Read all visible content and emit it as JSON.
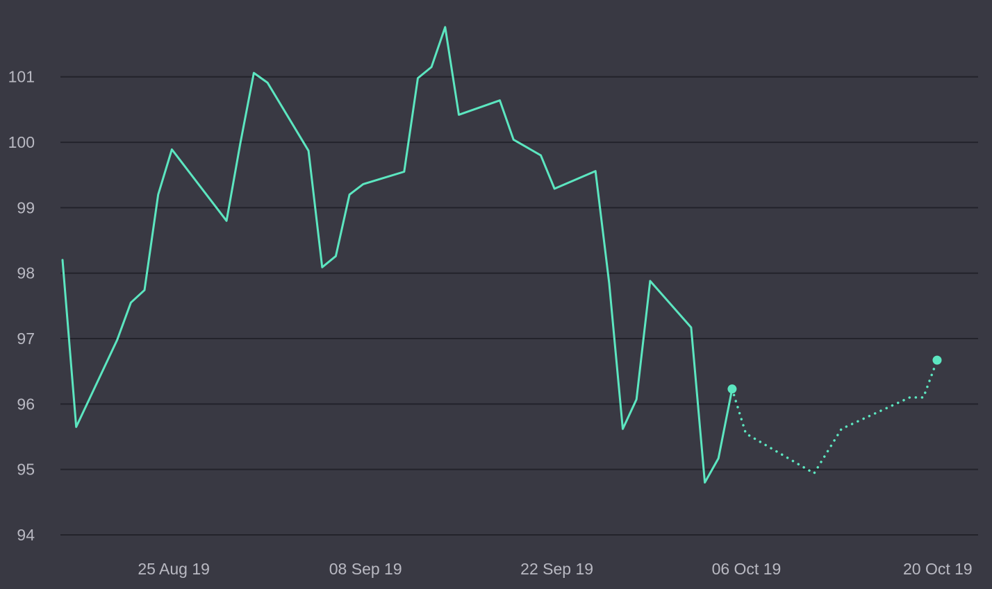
{
  "chart_data": {
    "type": "line",
    "title": "",
    "xlabel": "",
    "ylabel": "",
    "grid": "horizontal",
    "legend": "none",
    "ylim": [
      94,
      101.75
    ],
    "xlim": [
      "2019-08-20",
      "2019-10-26"
    ],
    "y_ticks": [
      94,
      95,
      96,
      97,
      98,
      99,
      100,
      101
    ],
    "x_ticks": [
      {
        "date": "2019-08-25",
        "label": "25 Aug 19"
      },
      {
        "date": "2019-09-08",
        "label": "08 Sep 19"
      },
      {
        "date": "2019-09-22",
        "label": "22 Sep 19"
      },
      {
        "date": "2019-10-06",
        "label": "06 Oct 19"
      },
      {
        "date": "2019-10-20",
        "label": "20 Oct 19"
      }
    ],
    "colors": {
      "background": "#393943",
      "series": "#5ce6c0",
      "grid": "#23232b",
      "tick_text": "#b9b9c2"
    },
    "series": [
      {
        "style": "solid",
        "end_marker": true,
        "points": [
          {
            "x": "2019-08-20",
            "y": 98.2
          },
          {
            "x": "2019-08-21",
            "y": 95.65
          },
          {
            "x": "2019-08-24",
            "y": 96.98
          },
          {
            "x": "2019-08-25",
            "y": 97.55
          },
          {
            "x": "2019-08-26",
            "y": 97.74
          },
          {
            "x": "2019-08-27",
            "y": 99.2
          },
          {
            "x": "2019-08-28",
            "y": 99.89
          },
          {
            "x": "2019-09-01",
            "y": 98.8
          },
          {
            "x": "2019-09-02",
            "y": 99.97
          },
          {
            "x": "2019-09-03",
            "y": 101.06
          },
          {
            "x": "2019-09-04",
            "y": 100.91
          },
          {
            "x": "2019-09-07",
            "y": 99.87
          },
          {
            "x": "2019-09-08",
            "y": 98.09
          },
          {
            "x": "2019-09-09",
            "y": 98.26
          },
          {
            "x": "2019-09-10",
            "y": 99.2
          },
          {
            "x": "2019-09-11",
            "y": 99.36
          },
          {
            "x": "2019-09-14",
            "y": 99.55
          },
          {
            "x": "2019-09-15",
            "y": 100.98
          },
          {
            "x": "2019-09-16",
            "y": 101.15
          },
          {
            "x": "2019-09-17",
            "y": 101.76
          },
          {
            "x": "2019-09-18",
            "y": 100.42
          },
          {
            "x": "2019-09-21",
            "y": 100.64
          },
          {
            "x": "2019-09-22",
            "y": 100.04
          },
          {
            "x": "2019-09-23",
            "y": 99.92
          },
          {
            "x": "2019-09-24",
            "y": 99.8
          },
          {
            "x": "2019-09-25",
            "y": 99.29
          },
          {
            "x": "2019-09-28",
            "y": 99.56
          },
          {
            "x": "2019-09-29",
            "y": 97.85
          },
          {
            "x": "2019-09-30",
            "y": 95.62
          },
          {
            "x": "2019-10-01",
            "y": 96.07
          },
          {
            "x": "2019-10-02",
            "y": 97.88
          },
          {
            "x": "2019-10-05",
            "y": 97.17
          },
          {
            "x": "2019-10-06",
            "y": 94.8
          },
          {
            "x": "2019-10-07",
            "y": 95.17
          },
          {
            "x": "2019-10-08",
            "y": 96.23
          }
        ]
      },
      {
        "style": "dotted",
        "end_marker": true,
        "points": [
          {
            "x": "2019-10-08",
            "y": 96.23
          },
          {
            "x": "2019-10-09",
            "y": 95.55
          },
          {
            "x": "2019-10-14",
            "y": 94.94
          },
          {
            "x": "2019-10-16",
            "y": 95.62
          },
          {
            "x": "2019-10-21",
            "y": 96.1
          },
          {
            "x": "2019-10-22",
            "y": 96.1
          },
          {
            "x": "2019-10-23",
            "y": 96.67
          }
        ]
      }
    ]
  }
}
